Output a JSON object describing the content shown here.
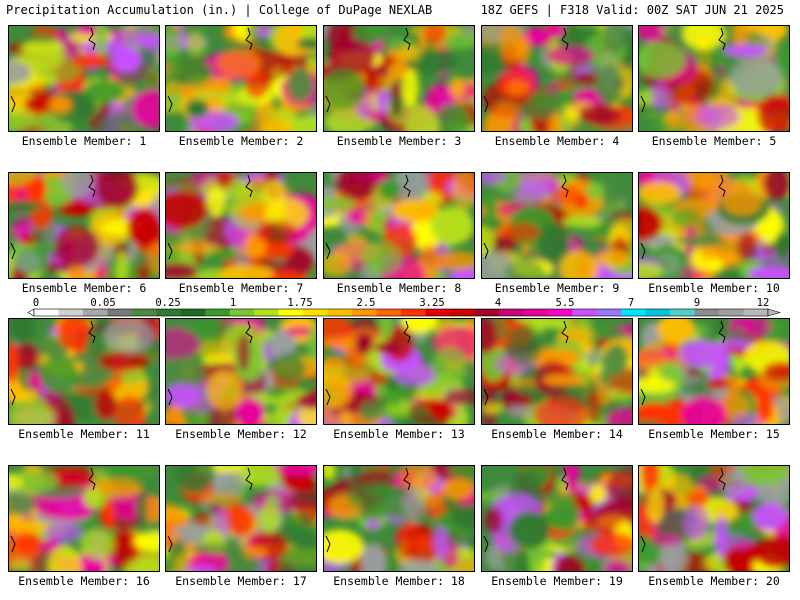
{
  "header": {
    "left": "Precipitation Accumulation (in.) | College of DuPage NEXLAB",
    "right": "18Z GEFS | F318 Valid: 00Z SAT JUN 21 2025"
  },
  "panels": [
    {
      "label": "Ensemble Member: 1"
    },
    {
      "label": "Ensemble Member: 2"
    },
    {
      "label": "Ensemble Member: 3"
    },
    {
      "label": "Ensemble Member: 4"
    },
    {
      "label": "Ensemble Member: 5"
    },
    {
      "label": "Ensemble Member: 6"
    },
    {
      "label": "Ensemble Member: 7"
    },
    {
      "label": "Ensemble Member: 8"
    },
    {
      "label": "Ensemble Member: 9"
    },
    {
      "label": "Ensemble Member: 10"
    },
    {
      "label": "Ensemble Member: 11"
    },
    {
      "label": "Ensemble Member: 12"
    },
    {
      "label": "Ensemble Member: 13"
    },
    {
      "label": "Ensemble Member: 14"
    },
    {
      "label": "Ensemble Member: 15"
    },
    {
      "label": "Ensemble Member: 16"
    },
    {
      "label": "Ensemble Member: 17"
    },
    {
      "label": "Ensemble Member: 18"
    },
    {
      "label": "Ensemble Member: 19"
    },
    {
      "label": "Ensemble Member: 20"
    }
  ],
  "colorbar": {
    "tick_labels": [
      "0",
      "0.05",
      "0.25",
      "1",
      "1.75",
      "2.5",
      "3.25",
      "4",
      "5.5",
      "7",
      "9",
      "12"
    ],
    "colors": [
      "#ffffff",
      "#d2d2d2",
      "#a8a8a8",
      "#7a7a7a",
      "#4f8a3f",
      "#2f7a2f",
      "#1f6a1f",
      "#3a9a2a",
      "#7ac832",
      "#b4e01e",
      "#ffff00",
      "#ffe000",
      "#ffbe00",
      "#ff9600",
      "#ff6400",
      "#ff3200",
      "#e60000",
      "#c80000",
      "#a00028",
      "#c80078",
      "#e6009a",
      "#ff00c8",
      "#c850ff",
      "#9678ff",
      "#00e6ff",
      "#00c8dc",
      "#50d2c8",
      "#8c8c8c",
      "#a0a0a0",
      "#b9b9b9"
    ]
  }
}
